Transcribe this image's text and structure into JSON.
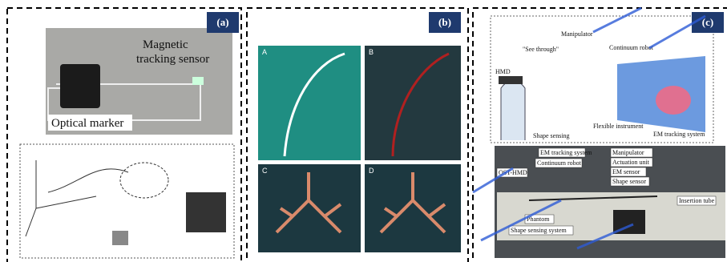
{
  "panels": [
    {
      "label": "(a)",
      "texts": [
        "Magnetic",
        "tracking sensor",
        "Optical marker"
      ]
    },
    {
      "label": "(b)",
      "texts": [
        "A",
        "B",
        "C",
        "D"
      ]
    },
    {
      "label": "(c)",
      "texts": [
        "HMD",
        "\"See through\"",
        "Manipulator",
        "Continuum robot",
        "Flexible instrument",
        "EM tracking system",
        "Shape sensing",
        "OST-HMD",
        "EM tracking system",
        "Continuum robot",
        "Manipulator",
        "Actuation unit",
        "EM sensor",
        "Shape sensor",
        "Insertion tube",
        "Phantom",
        "Shape sensing system"
      ]
    }
  ]
}
